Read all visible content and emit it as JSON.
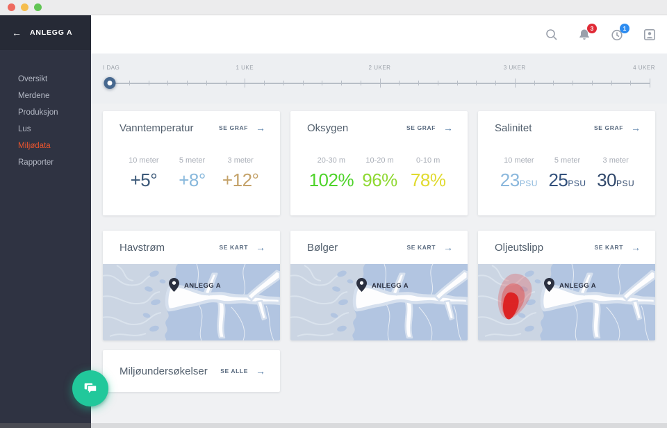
{
  "icons": {
    "arrow_right": "→",
    "back": "←"
  },
  "sidebar": {
    "title": "ANLEGG A",
    "items": [
      {
        "label": "Oversikt",
        "active": false
      },
      {
        "label": "Merdene",
        "active": false
      },
      {
        "label": "Produksjon",
        "active": false
      },
      {
        "label": "Lus",
        "active": false
      },
      {
        "label": "Miljødata",
        "active": true
      },
      {
        "label": "Rapporter",
        "active": false
      }
    ],
    "active_color": "#e8542e"
  },
  "topbar": {
    "notifications_badge": "3",
    "notifications_badge_color": "#e02a36",
    "history_badge": "1",
    "history_badge_color": "#2d8cf0"
  },
  "timeline": {
    "labels": [
      "I DAG",
      "1 UKE",
      "2 UKER",
      "3 UKER",
      "4 UKER"
    ],
    "selected": "I DAG",
    "days_total": 28
  },
  "cards": {
    "vanntemperatur": {
      "title": "Vanntemperatur",
      "link": "SE GRAF",
      "stats": [
        {
          "label": "10 meter",
          "value": "+5°",
          "color": "#3b5878"
        },
        {
          "label": "5 meter",
          "value": "+8°",
          "color": "#88b8dc"
        },
        {
          "label": "3 meter",
          "value": "+12°",
          "color": "#c4a269"
        }
      ]
    },
    "oksygen": {
      "title": "Oksygen",
      "link": "SE GRAF",
      "stats": [
        {
          "label": "20-30 m",
          "value": "102%",
          "color": "#4ed32a"
        },
        {
          "label": "10-20 m",
          "value": "96%",
          "color": "#8ed831"
        },
        {
          "label": "0-10 m",
          "value": "78%",
          "color": "#e0da2f"
        }
      ]
    },
    "salinitet": {
      "title": "Salinitet",
      "link": "SE GRAF",
      "stats": [
        {
          "label": "10 meter",
          "value": "23",
          "unit": "PSU",
          "color": "#8ab7dc"
        },
        {
          "label": "5 meter",
          "value": "25",
          "unit": "PSU",
          "color": "#33517c"
        },
        {
          "label": "3 meter",
          "value": "30",
          "unit": "PSU",
          "color": "#31486b"
        }
      ]
    },
    "havstrom": {
      "title": "Havstrøm",
      "link": "SE KART",
      "pin_label": "ANLEGG A"
    },
    "bolger": {
      "title": "Bølger",
      "link": "SE KART",
      "pin_label": "ANLEGG A"
    },
    "oljeutslipp": {
      "title": "Oljeutslipp",
      "link": "SE KART",
      "pin_label": "ANLEGG A"
    },
    "miljoundersokelser": {
      "title": "Miljøundersøkelser",
      "link": "SE ALLE"
    }
  }
}
